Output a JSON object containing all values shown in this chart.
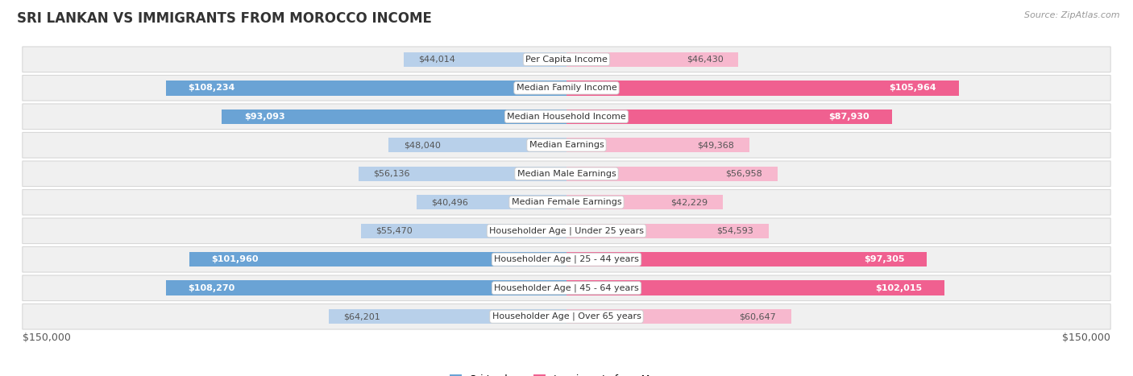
{
  "title": "SRI LANKAN VS IMMIGRANTS FROM MOROCCO INCOME",
  "source": "Source: ZipAtlas.com",
  "categories": [
    "Per Capita Income",
    "Median Family Income",
    "Median Household Income",
    "Median Earnings",
    "Median Male Earnings",
    "Median Female Earnings",
    "Householder Age | Under 25 years",
    "Householder Age | 25 - 44 years",
    "Householder Age | 45 - 64 years",
    "Householder Age | Over 65 years"
  ],
  "sri_lankan": [
    44014,
    108234,
    93093,
    48040,
    56136,
    40496,
    55470,
    101960,
    108270,
    64201
  ],
  "morocco": [
    46430,
    105964,
    87930,
    49368,
    56958,
    42229,
    54593,
    97305,
    102015,
    60647
  ],
  "max_value": 150000,
  "sri_lankan_light": "#b8d0ea",
  "sri_lankan_dark": "#6aa3d5",
  "morocco_light": "#f7b8ce",
  "morocco_dark": "#f06090",
  "row_bg_color": "#f0f0f0",
  "row_border_color": "#d8d8d8",
  "title_color": "#333333",
  "source_color": "#999999",
  "value_color_inside": "#ffffff",
  "value_color_outside": "#555555",
  "legend_sri_lankan": "Sri Lankan",
  "legend_morocco": "Immigrants from Morocco",
  "xlabel_left": "$150,000",
  "xlabel_right": "$150,000",
  "inside_threshold": 70000
}
